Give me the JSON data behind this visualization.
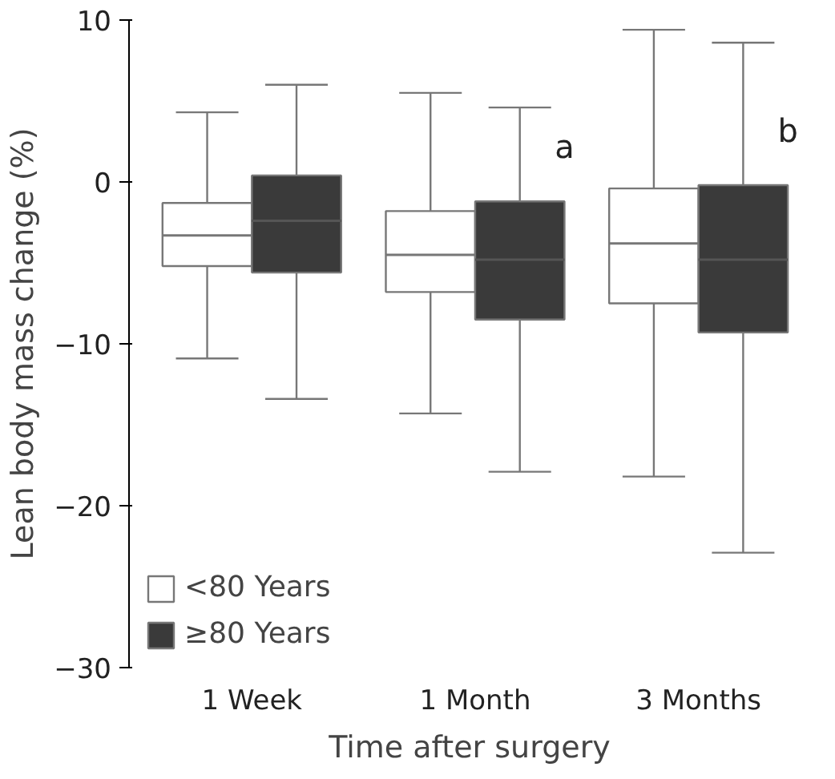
{
  "chart_data": {
    "type": "box",
    "xlabel": "Time after surgery",
    "ylabel": "Lean body mass change (%)",
    "categories": [
      "1 Week",
      "1 Month",
      "3 Months"
    ],
    "ylim": [
      -30,
      10
    ],
    "yticks": [
      -30,
      -20,
      -10,
      0,
      10
    ],
    "grid": false,
    "legend": "bottom left",
    "series": [
      {
        "name": "<80 Years",
        "color": "#ffffff",
        "boxes": [
          {
            "low": -10.9,
            "q1": -5.2,
            "median": -3.3,
            "q3": -1.3,
            "high": 4.3
          },
          {
            "low": -14.3,
            "q1": -6.8,
            "median": -4.5,
            "q3": -1.8,
            "high": 5.5
          },
          {
            "low": -18.2,
            "q1": -7.5,
            "median": -3.8,
            "q3": -0.4,
            "high": 9.4
          }
        ]
      },
      {
        "name": "≥80 Years",
        "color": "#3a3a3a",
        "boxes": [
          {
            "low": -13.4,
            "q1": -5.6,
            "median": -2.4,
            "q3": 0.4,
            "high": 6.0
          },
          {
            "low": -17.9,
            "q1": -8.5,
            "median": -4.8,
            "q3": -1.2,
            "high": 4.6
          },
          {
            "low": -22.9,
            "q1": -9.3,
            "median": -4.8,
            "q3": -0.2,
            "high": 8.6
          }
        ]
      }
    ],
    "annotations": [
      "a",
      "b"
    ]
  }
}
